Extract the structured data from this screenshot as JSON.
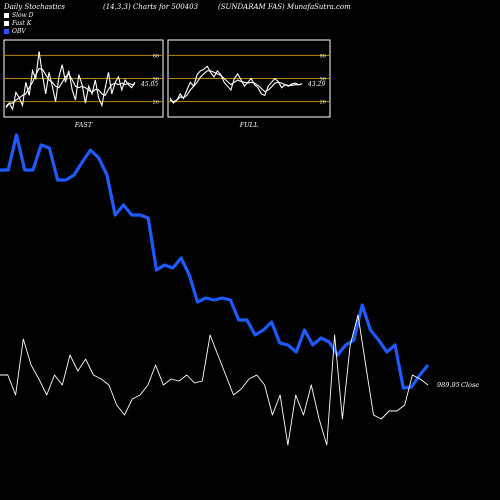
{
  "header": {
    "left": "Daily Stochastics",
    "mid": "(14,3,3) Charts for 500403",
    "right": "(SUNDARAM FAS) MunafaSutra.com"
  },
  "legend": [
    {
      "label": "Slow  D",
      "color": "#ffffff"
    },
    {
      "label": "Fast K",
      "color": "#ffffff"
    },
    {
      "label": "OBV",
      "color": "#1e5aff"
    }
  ],
  "colors": {
    "background": "#000000",
    "obv": "#1e5aff",
    "price": "#ffffff",
    "level": "#b8860b"
  },
  "chart_data": [
    {
      "type": "line",
      "title": "FAST",
      "ylim": [
        0,
        100
      ],
      "levels": [
        20,
        50,
        80
      ],
      "tick_labels": [
        "80",
        "50",
        "20"
      ],
      "last_value_label": "45.05",
      "series": [
        {
          "values": [
            12,
            18,
            10,
            32,
            25,
            15,
            45,
            28,
            60,
            50,
            85,
            55,
            30,
            58,
            40,
            20,
            52,
            68,
            45,
            60,
            35,
            22,
            55,
            42,
            18,
            40,
            30,
            48,
            25,
            15,
            38,
            58,
            30,
            45,
            52,
            35,
            48,
            42,
            38,
            45
          ]
        },
        {
          "values": [
            14,
            18,
            18,
            22,
            25,
            28,
            30,
            38,
            45,
            55,
            63,
            62,
            55,
            48,
            45,
            40,
            38,
            45,
            52,
            56,
            48,
            40,
            38,
            40,
            38,
            35,
            32,
            36,
            35,
            30,
            28,
            36,
            42,
            44,
            42,
            44,
            42,
            44,
            42,
            43
          ]
        }
      ]
    },
    {
      "type": "line",
      "title": "FULL",
      "ylim": [
        0,
        100
      ],
      "levels": [
        20,
        50,
        80
      ],
      "tick_labels": [
        "80",
        "50",
        "20"
      ],
      "last_value_label": "43.29",
      "series": [
        {
          "values": [
            25,
            18,
            22,
            30,
            24,
            35,
            45,
            40,
            55,
            60,
            62,
            66,
            58,
            52,
            60,
            55,
            45,
            40,
            35,
            50,
            56,
            48,
            40,
            45,
            50,
            42,
            38,
            30,
            28,
            40,
            45,
            50,
            46,
            38,
            42,
            40,
            43,
            44,
            42,
            43
          ]
        },
        {
          "values": [
            22,
            20,
            22,
            26,
            25,
            28,
            35,
            40,
            45,
            52,
            56,
            60,
            60,
            58,
            56,
            54,
            50,
            46,
            42,
            45,
            48,
            46,
            45,
            44,
            45,
            44,
            41,
            37,
            33,
            35,
            39,
            44,
            45,
            44,
            42,
            41,
            41,
            42,
            42,
            43
          ]
        }
      ]
    },
    {
      "type": "line",
      "title": "",
      "series": [
        {
          "values": [
            170,
            170,
            135,
            170,
            170,
            145,
            148,
            180,
            180,
            175,
            162,
            150,
            158,
            175,
            215,
            205,
            215,
            215,
            218,
            270,
            265,
            268,
            258,
            275,
            302,
            298,
            300,
            298,
            300,
            320,
            320,
            335,
            330,
            322,
            343,
            345,
            352,
            330,
            345,
            338,
            342,
            355,
            345,
            340,
            305,
            330,
            340,
            352,
            345,
            388,
            387,
            375,
            365
          ]
        }
      ]
    },
    {
      "type": "line",
      "title": "",
      "last_value_label": "989.95",
      "label_suffix": "Close",
      "series": [
        {
          "values": [
            40,
            40,
            30,
            58,
            45,
            38,
            30,
            40,
            35,
            50,
            42,
            48,
            40,
            38,
            35,
            25,
            20,
            28,
            30,
            35,
            45,
            35,
            38,
            37,
            40,
            36,
            37,
            60,
            50,
            40,
            30,
            33,
            38,
            40,
            35,
            20,
            30,
            5,
            30,
            20,
            35,
            18,
            5,
            60,
            18,
            55,
            70,
            45,
            20,
            18,
            22,
            22,
            25,
            40,
            38,
            35
          ]
        }
      ]
    }
  ]
}
